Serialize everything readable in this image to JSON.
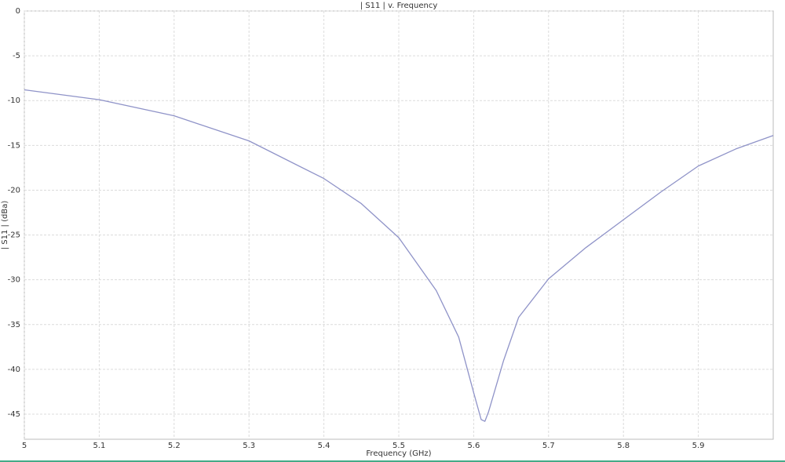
{
  "chart_data": {
    "type": "line",
    "title": "| S11 | v. Frequency",
    "x_label": "Frequency (GHz)",
    "y_label": "| S11 | (dBa)",
    "x": [
      5.0,
      5.1,
      5.2,
      5.3,
      5.4,
      5.45,
      5.5,
      5.55,
      5.58,
      5.6,
      5.61,
      5.615,
      5.62,
      5.64,
      5.66,
      5.7,
      5.75,
      5.8,
      5.85,
      5.9,
      5.95,
      6.0
    ],
    "series": [
      {
        "name": "| S11 |",
        "color": "#8f93c8",
        "values": [
          -8.8,
          -9.9,
          -11.7,
          -14.5,
          -18.7,
          -21.5,
          -25.3,
          -31.2,
          -36.4,
          -42.6,
          -45.6,
          -45.8,
          -44.7,
          -39,
          -34.2,
          -29.9,
          -26.4,
          -23.3,
          -20.2,
          -17.3,
          -15.4,
          -13.9
        ]
      }
    ],
    "xlim": [
      5,
      6
    ],
    "xticks": [
      5,
      5.1,
      5.2,
      5.3,
      5.4,
      5.5,
      5.6,
      5.7,
      5.8,
      5.9
    ],
    "ylim": [
      -47.8,
      0
    ],
    "yticks": [
      0,
      -5,
      -10,
      -15,
      -20,
      -25,
      -30,
      -35,
      -40,
      -45
    ],
    "grid": true
  }
}
